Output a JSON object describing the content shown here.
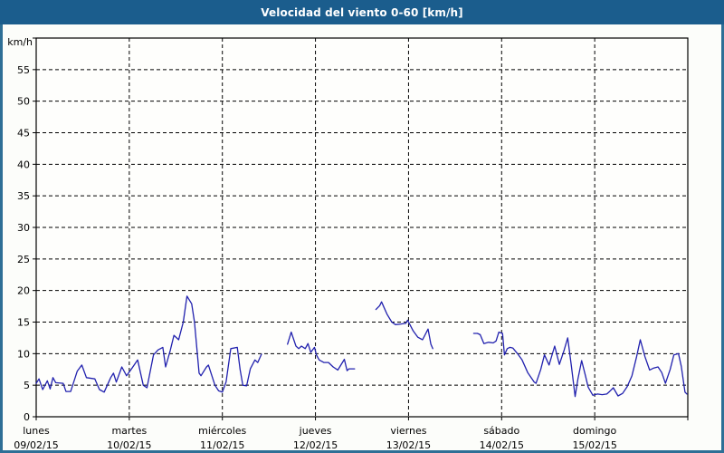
{
  "window": {
    "title": "Velocidad del viento 0-60 [km/h]"
  },
  "colors": {
    "titlebar_bg": "#1b5d8d",
    "title_text": "#ffffff",
    "frame": "#2e6f96",
    "content_bg": "#fcfdfa",
    "plot_bg": "#fefefc",
    "grid": "#000000",
    "axis": "#000000",
    "line": "#2121ae",
    "text": "#000000"
  },
  "chart_data": {
    "type": "line",
    "title": "Velocidad del viento 0-60 [km/h]",
    "ylabel": "km/h",
    "xlabel": "",
    "ylim": [
      0,
      60
    ],
    "ytick_step": 5,
    "ytick_labels": [
      "0",
      "5",
      "10",
      "15",
      "20",
      "25",
      "30",
      "35",
      "40",
      "45",
      "50",
      "55"
    ],
    "grid": "dashed, horizontal every 5 km/h, vertical at each day boundary",
    "legend": "none",
    "x_axis": {
      "unit": "days",
      "range": [
        0,
        7
      ],
      "days": [
        {
          "label": "lunes",
          "date": "09/02/15"
        },
        {
          "label": "martes",
          "date": "10/02/15"
        },
        {
          "label": "miércoles",
          "date": "11/02/15"
        },
        {
          "label": "jueves",
          "date": "12/02/15"
        },
        {
          "label": "viernes",
          "date": "13/02/15"
        },
        {
          "label": "sábado",
          "date": "14/02/15"
        },
        {
          "label": "domingo",
          "date": "15/02/15"
        }
      ]
    },
    "series": [
      {
        "name": "velocidad del viento",
        "unit": "km/h",
        "color": "#2121ae",
        "segments": [
          [
            [
              0.0,
              5.3
            ],
            [
              0.03,
              6.0
            ],
            [
              0.07,
              4.3
            ],
            [
              0.12,
              5.7
            ],
            [
              0.15,
              4.4
            ],
            [
              0.18,
              6.2
            ],
            [
              0.21,
              5.4
            ],
            [
              0.29,
              5.3
            ],
            [
              0.32,
              4.0
            ],
            [
              0.37,
              4.0
            ],
            [
              0.44,
              7.2
            ],
            [
              0.49,
              8.2
            ],
            [
              0.54,
              6.2
            ],
            [
              0.63,
              6.0
            ],
            [
              0.68,
              4.3
            ],
            [
              0.73,
              3.9
            ],
            [
              0.8,
              6.2
            ],
            [
              0.83,
              6.9
            ],
            [
              0.86,
              5.5
            ],
            [
              0.92,
              7.9
            ],
            [
              0.97,
              6.5
            ],
            [
              1.02,
              7.5
            ],
            [
              1.09,
              9.0
            ],
            [
              1.15,
              5.0
            ],
            [
              1.19,
              4.6
            ],
            [
              1.26,
              9.8
            ],
            [
              1.31,
              10.6
            ],
            [
              1.36,
              11.0
            ],
            [
              1.39,
              7.9
            ],
            [
              1.44,
              10.5
            ],
            [
              1.48,
              12.9
            ],
            [
              1.53,
              12.2
            ],
            [
              1.58,
              15.0
            ],
            [
              1.62,
              19.1
            ],
            [
              1.67,
              17.9
            ],
            [
              1.7,
              15.0
            ],
            [
              1.75,
              6.9
            ],
            [
              1.77,
              6.5
            ],
            [
              1.83,
              7.9
            ],
            [
              1.85,
              8.2
            ],
            [
              1.92,
              5.0
            ],
            [
              1.96,
              4.1
            ],
            [
              2.0,
              3.9
            ],
            [
              2.04,
              5.5
            ],
            [
              2.09,
              10.8
            ],
            [
              2.16,
              11.0
            ],
            [
              2.19,
              7.5
            ],
            [
              2.22,
              5.0
            ],
            [
              2.26,
              4.9
            ],
            [
              2.3,
              7.6
            ],
            [
              2.35,
              9.0
            ],
            [
              2.38,
              8.6
            ],
            [
              2.42,
              9.9
            ]
          ],
          [
            [
              2.7,
              11.5
            ],
            [
              2.74,
              13.4
            ],
            [
              2.79,
              11.2
            ],
            [
              2.82,
              10.8
            ],
            [
              2.85,
              11.2
            ],
            [
              2.89,
              10.8
            ],
            [
              2.92,
              11.6
            ],
            [
              2.95,
              10.2
            ],
            [
              2.99,
              11.0
            ],
            [
              3.01,
              9.8
            ],
            [
              3.04,
              9.0
            ],
            [
              3.09,
              8.6
            ],
            [
              3.14,
              8.6
            ],
            [
              3.19,
              7.9
            ],
            [
              3.24,
              7.4
            ],
            [
              3.31,
              9.1
            ],
            [
              3.34,
              7.3
            ],
            [
              3.36,
              7.6
            ],
            [
              3.42,
              7.6
            ]
          ],
          [
            [
              3.65,
              17.0
            ],
            [
              3.69,
              17.6
            ],
            [
              3.71,
              18.2
            ],
            [
              3.77,
              16.2
            ],
            [
              3.82,
              15.0
            ],
            [
              3.86,
              14.6
            ],
            [
              3.92,
              14.7
            ],
            [
              3.97,
              14.8
            ],
            [
              3.99,
              15.3
            ],
            [
              4.05,
              13.6
            ],
            [
              4.1,
              12.6
            ],
            [
              4.15,
              12.2
            ],
            [
              4.21,
              13.9
            ],
            [
              4.24,
              11.5
            ],
            [
              4.26,
              10.8
            ]
          ],
          [
            [
              4.7,
              13.2
            ],
            [
              4.74,
              13.2
            ],
            [
              4.77,
              13.0
            ],
            [
              4.81,
              11.6
            ],
            [
              4.86,
              11.8
            ],
            [
              4.91,
              11.7
            ],
            [
              4.94,
              12.0
            ],
            [
              4.97,
              13.4
            ],
            [
              5.01,
              13.2
            ],
            [
              5.03,
              9.8
            ],
            [
              5.06,
              10.8
            ],
            [
              5.09,
              11.0
            ],
            [
              5.12,
              10.9
            ],
            [
              5.17,
              10.0
            ],
            [
              5.22,
              9.0
            ],
            [
              5.28,
              7.0
            ],
            [
              5.35,
              5.5
            ],
            [
              5.37,
              5.3
            ],
            [
              5.42,
              7.5
            ],
            [
              5.46,
              9.8
            ],
            [
              5.51,
              8.2
            ],
            [
              5.57,
              11.2
            ],
            [
              5.62,
              8.3
            ],
            [
              5.67,
              10.5
            ],
            [
              5.71,
              12.5
            ],
            [
              5.75,
              8.0
            ],
            [
              5.79,
              3.2
            ],
            [
              5.82,
              6.0
            ],
            [
              5.86,
              8.9
            ],
            [
              5.9,
              6.5
            ],
            [
              5.93,
              4.7
            ],
            [
              5.98,
              3.4
            ],
            [
              6.03,
              3.6
            ],
            [
              6.08,
              3.5
            ],
            [
              6.13,
              3.6
            ],
            [
              6.16,
              4.0
            ],
            [
              6.2,
              4.6
            ],
            [
              6.25,
              3.3
            ],
            [
              6.3,
              3.7
            ],
            [
              6.35,
              4.8
            ],
            [
              6.4,
              6.5
            ],
            [
              6.45,
              9.5
            ],
            [
              6.49,
              12.2
            ],
            [
              6.54,
              9.5
            ],
            [
              6.59,
              7.4
            ],
            [
              6.63,
              7.7
            ],
            [
              6.68,
              7.9
            ],
            [
              6.72,
              7.0
            ],
            [
              6.76,
              5.3
            ],
            [
              6.81,
              7.5
            ],
            [
              6.85,
              9.8
            ],
            [
              6.9,
              10.0
            ],
            [
              6.93,
              8.0
            ],
            [
              6.97,
              3.9
            ],
            [
              6.99,
              3.6
            ]
          ]
        ]
      }
    ]
  }
}
